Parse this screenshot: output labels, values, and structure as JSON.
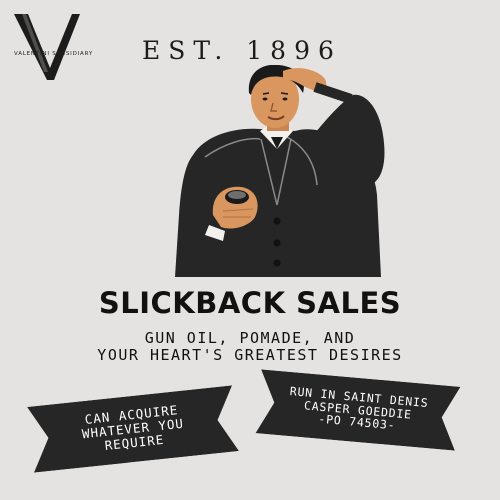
{
  "logo": {
    "letter": "V",
    "subsidiary": "VALENTINI SUBSIDIARY"
  },
  "established": "EST. 1896",
  "illustration": {
    "icon": "gentleman-illustration"
  },
  "title": "SLICKBACK SALES",
  "tagline": {
    "line1": "GUN OIL, POMADE, AND",
    "line2": "YOUR HEART'S GREATEST DESIRES"
  },
  "banner_left": {
    "line1": "CAN ACQUIRE",
    "line2": "WHATEVER YOU",
    "line3": "REQUIRE"
  },
  "banner_right": {
    "line1": "RUN IN SAINT DENIS",
    "line2": "CASPER GOEDDIE",
    "line3": "-PO 74503-"
  },
  "colors": {
    "background": "#e4e3e1",
    "ink": "#1a1a1a",
    "banner": "#262626",
    "skin": "#d9965e"
  }
}
